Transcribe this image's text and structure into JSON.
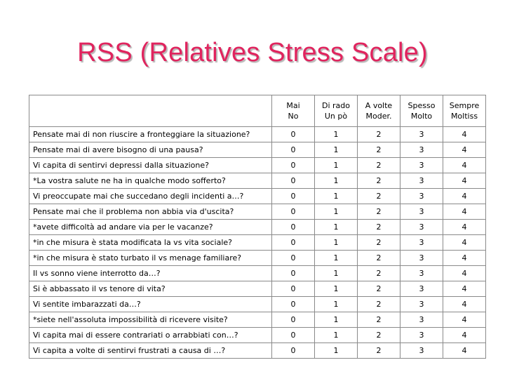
{
  "title": "RSS (Relatives Stress Scale)",
  "table": {
    "headers": [
      {
        "line1": "Mai",
        "line2": "No"
      },
      {
        "line1": "Di rado",
        "line2": "Un pò"
      },
      {
        "line1": "A volte",
        "line2": "Moder."
      },
      {
        "line1": "Spesso",
        "line2": "Molto"
      },
      {
        "line1": "Sempre",
        "line2": "Moltiss"
      }
    ],
    "rows": [
      {
        "q": "Pensate mai di non riuscire a fronteggiare la situazione?",
        "v": [
          "0",
          "1",
          "2",
          "3",
          "4"
        ]
      },
      {
        "q": "Pensate mai di avere bisogno di una pausa?",
        "v": [
          "0",
          "1",
          "2",
          "3",
          "4"
        ]
      },
      {
        "q": "Vi capita di sentirvi depressi dalla situazione?",
        "v": [
          "0",
          "1",
          "2",
          "3",
          "4"
        ]
      },
      {
        "q": "*La vostra salute ne ha in qualche modo sofferto?",
        "v": [
          "0",
          "1",
          "2",
          "3",
          "4"
        ]
      },
      {
        "q": "Vi preoccupate mai che succedano degli incidenti a…?",
        "v": [
          "0",
          "1",
          "2",
          "3",
          "4"
        ]
      },
      {
        "q": "Pensate mai che il problema non abbia via d'uscita?",
        "v": [
          "0",
          "1",
          "2",
          "3",
          "4"
        ]
      },
      {
        "q": "*avete difficoltà ad andare via per le vacanze?",
        "v": [
          "0",
          "1",
          "2",
          "3",
          "4"
        ]
      },
      {
        "q": "*in che misura è stata modificata la vs vita sociale?",
        "v": [
          "0",
          "1",
          "2",
          "3",
          "4"
        ]
      },
      {
        "q": "*in che misura è stato turbato il vs menage familiare?",
        "v": [
          "0",
          "1",
          "2",
          "3",
          "4"
        ]
      },
      {
        "q": "Il vs sonno viene interrotto da…?",
        "v": [
          "0",
          "1",
          "2",
          "3",
          "4"
        ]
      },
      {
        "q": "Si è abbassato il vs tenore di vita?",
        "v": [
          "0",
          "1",
          "2",
          "3",
          "4"
        ]
      },
      {
        "q": "Vi sentite imbarazzati da…?",
        "v": [
          "0",
          "1",
          "2",
          "3",
          "4"
        ]
      },
      {
        "q": "*siete nell'assoluta impossibilità di ricevere visite?",
        "v": [
          "0",
          "1",
          "2",
          "3",
          "4"
        ]
      },
      {
        "q": "Vi capita mai di essere contrariati o arrabbiati con…?",
        "v": [
          "0",
          "1",
          "2",
          "3",
          "4"
        ]
      },
      {
        "q": "Vi capita a volte di sentirvi frustrati a causa di …?",
        "v": [
          "0",
          "1",
          "2",
          "3",
          "4"
        ]
      }
    ]
  }
}
